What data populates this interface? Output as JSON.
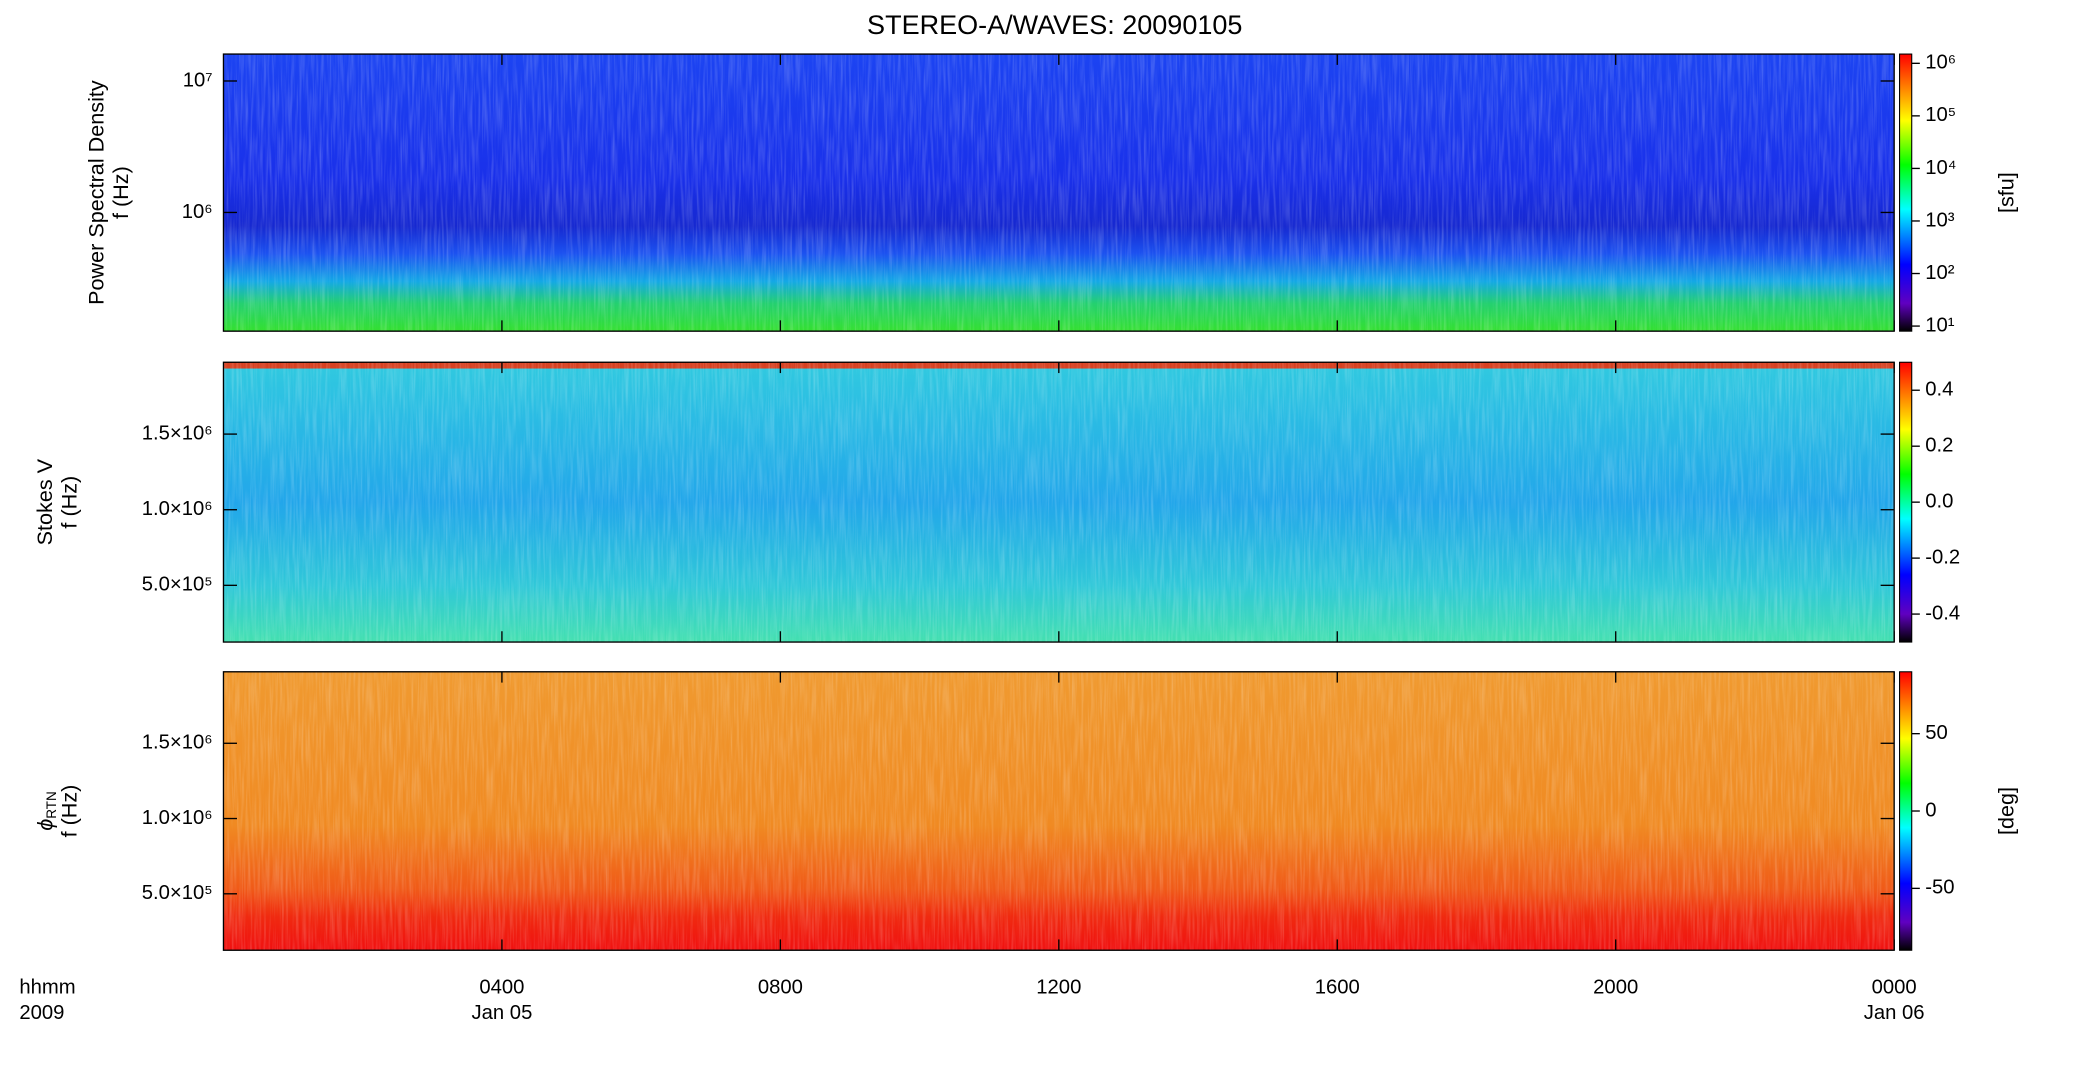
{
  "title": "STEREO-A/WAVES: 20090105",
  "x_axis": {
    "label_lines": [
      "hhmm",
      "2009"
    ],
    "xlim": [
      0,
      24
    ],
    "ticks": [
      {
        "value": 4,
        "label": "0400",
        "date": "Jan 05"
      },
      {
        "value": 8,
        "label": "0800"
      },
      {
        "value": 12,
        "label": "1200"
      },
      {
        "value": 16,
        "label": "1600"
      },
      {
        "value": 20,
        "label": "2000"
      },
      {
        "value": 24,
        "label": "0000",
        "date": "Jan 06"
      }
    ]
  },
  "chart_data": [
    {
      "type": "spectrogram",
      "ylabel_lines": [
        "Power Spectral Density",
        "f (Hz)"
      ],
      "ylog": true,
      "ylim": [
        125000,
        16025000
      ],
      "yticks": [
        {
          "value": 1000000,
          "label": "10⁶"
        },
        {
          "value": 10000000,
          "label": "10⁷"
        }
      ],
      "colorbar": {
        "log": true,
        "zlim": [
          8,
          1500000
        ],
        "label": "[sfu]",
        "ticks": [
          {
            "value": 10,
            "label": "10¹"
          },
          {
            "value": 100,
            "label": "10²"
          },
          {
            "value": 1000,
            "label": "10³"
          },
          {
            "value": 10000,
            "label": "10⁴"
          },
          {
            "value": 100000,
            "label": "10⁵"
          },
          {
            "value": 1000000,
            "label": "10⁶"
          }
        ]
      }
    },
    {
      "type": "spectrogram",
      "ylabel_lines": [
        "Stokes V",
        "f (Hz)"
      ],
      "ylog": false,
      "ylim": [
        125000,
        1975000
      ],
      "yticks": [
        {
          "value": 500000,
          "label": "5.0×10⁵"
        },
        {
          "value": 1000000,
          "label": "1.0×10⁶"
        },
        {
          "value": 1500000,
          "label": "1.5×10⁶"
        }
      ],
      "colorbar": {
        "log": false,
        "zlim": [
          -0.5,
          0.5
        ],
        "ticks": [
          -0.4,
          -0.2,
          {
            "value": 0,
            "label": "0.0"
          },
          0.2,
          0.4
        ]
      }
    },
    {
      "type": "spectrogram",
      "ylabel_symbol": "ϕ",
      "ylabel_subscript": "RTN",
      "ylabel_lines": [
        "f (Hz)"
      ],
      "ylog": false,
      "ylim": [
        125000,
        1975000
      ],
      "yticks": [
        {
          "value": 500000,
          "label": "5.0×10⁵"
        },
        {
          "value": 1000000,
          "label": "1.0×10⁶"
        },
        {
          "value": 1500000,
          "label": "1.5×10⁶"
        }
      ],
      "colorbar": {
        "log": false,
        "zlim": [
          -90,
          90
        ],
        "label": "[deg]",
        "ticks": [
          -50,
          0,
          50
        ]
      }
    }
  ]
}
